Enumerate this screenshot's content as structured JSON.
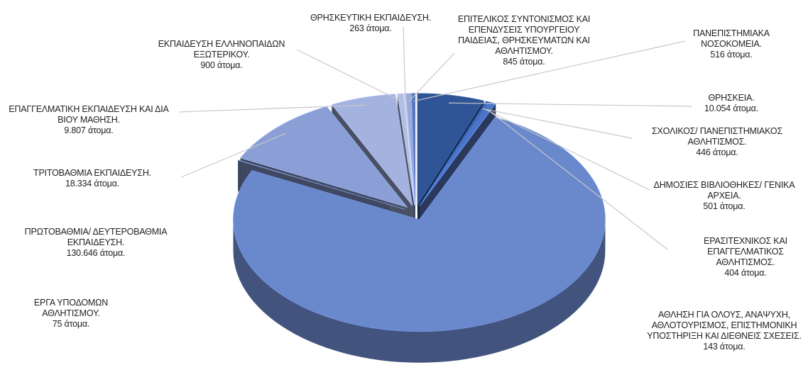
{
  "chart_data": {
    "type": "pie3d",
    "categories": [
      "ΘΡΗΣΚΕΙΑ.",
      "ΣΧΟΛΙΚΟΣ/ ΠΑΝΕΠΙΣΤΗΜΙΑΚΟΣ ΑΘΛΗΤΙΣΜΟΣ.",
      "ΔΗΜΟΣΙΕΣ ΒΙΒΛΙΟΘΗΚΕΣ/ ΓΕΝΙΚΑ ΑΡΧΕΙΑ.",
      "ΕΡΑΣΙΤΕΧΝΙΚΟΣ ΚΑΙ ΕΠΑΓΓΕΛΜΑΤΙΚΟΣ ΑΘΛΗΤΙΣΜΟΣ.",
      "ΑΘΛΗΣΗ ΓΙΑ ΟΛΟΥΣ, ΑΝΑΨΥΧΗ, ΑΘΛΟΤΟΥΡΙΣΜΟΣ, ΕΠΙΣΤΗΜΟΝΙΚΗ ΥΠΟΣΤΗΡΙΞΗ ΚΑΙ ΔΙΕΘΝΕΙΣ ΣΧΕΣΕΙΣ.",
      "ΠΡΩΤΟΒΑΘΜΙΑ/ ΔΕΥΤΕΡΟΒΑΘΜΙΑ ΕΚΠΑΙΔΕΥΣΗ.",
      "ΕΡΓΑ ΥΠΟΔΟΜΩΝ ΑΘΛΗΤΙΣΜΟΥ.",
      "ΤΡΙΤΟΒΑΘΜΙΑ ΕΚΠΑΙΔΕΥΣΗ.",
      "ΕΠΑΓΓΕΛΜΑΤΙΚΗ ΕΚΠΑΙΔΕΥΣΗ ΚΑΙ ΔΙΑ ΒΙΟΥ ΜΑΘΗΣΗ.",
      "ΕΚΠΑΙΔΕΥΣΗ ΕΛΛΗΝΟΠΑΙΔΩΝ ΕΞΩΤΕΡΙΚΟΥ.",
      "ΘΡΗΣΚΕΥΤΙΚΗ ΕΚΠΑΙΔΕΥΣΗ.",
      "ΕΠΙΤΕΛΙΚΟΣ ΣΥΝΤΟΝΙΣΜΟΣ ΚΑΙ ΕΠΕΝΔΥΣΕΙΣ ΥΠΟΥΡΓΕΙΟΥ ΠΑΙΔΕΙΑΣ, ΘΡΗΣΚΕΥΜΑΤΩΝ ΚΑΙ ΑΘΛΗΤΙΣΜΟΥ.",
      "ΠΑΝΕΠΙΣΤΗΜΙΑΚΑ ΝΟΣΟΚΟΜΕΙΑ."
    ],
    "values": [
      10054,
      446,
      501,
      404,
      143,
      130646,
      75,
      18334,
      9807,
      900,
      263,
      845,
      516
    ],
    "value_labels": [
      "10.054 άτομα.",
      "446 άτομα.",
      "501 άτομα.",
      "404 άτομα.",
      "143 άτομα.",
      "130.646 άτομα.",
      "75 άτομα.",
      "18.334 άτομα.",
      "9.807 άτομα.",
      "900 άτομα.",
      "263 άτομα.",
      "845 άτομα.",
      "516 άτομα."
    ],
    "colors": [
      "#2f5597",
      "#3b64b4",
      "#4a72c0",
      "#4470c4",
      "#5a7ccb",
      "#6a88cc",
      "#7f95d2",
      "#8b9fd6",
      "#a3b2de",
      "#b2bfe4",
      "#c0cbe8",
      "#9aa9d8",
      "#5674bd"
    ]
  }
}
